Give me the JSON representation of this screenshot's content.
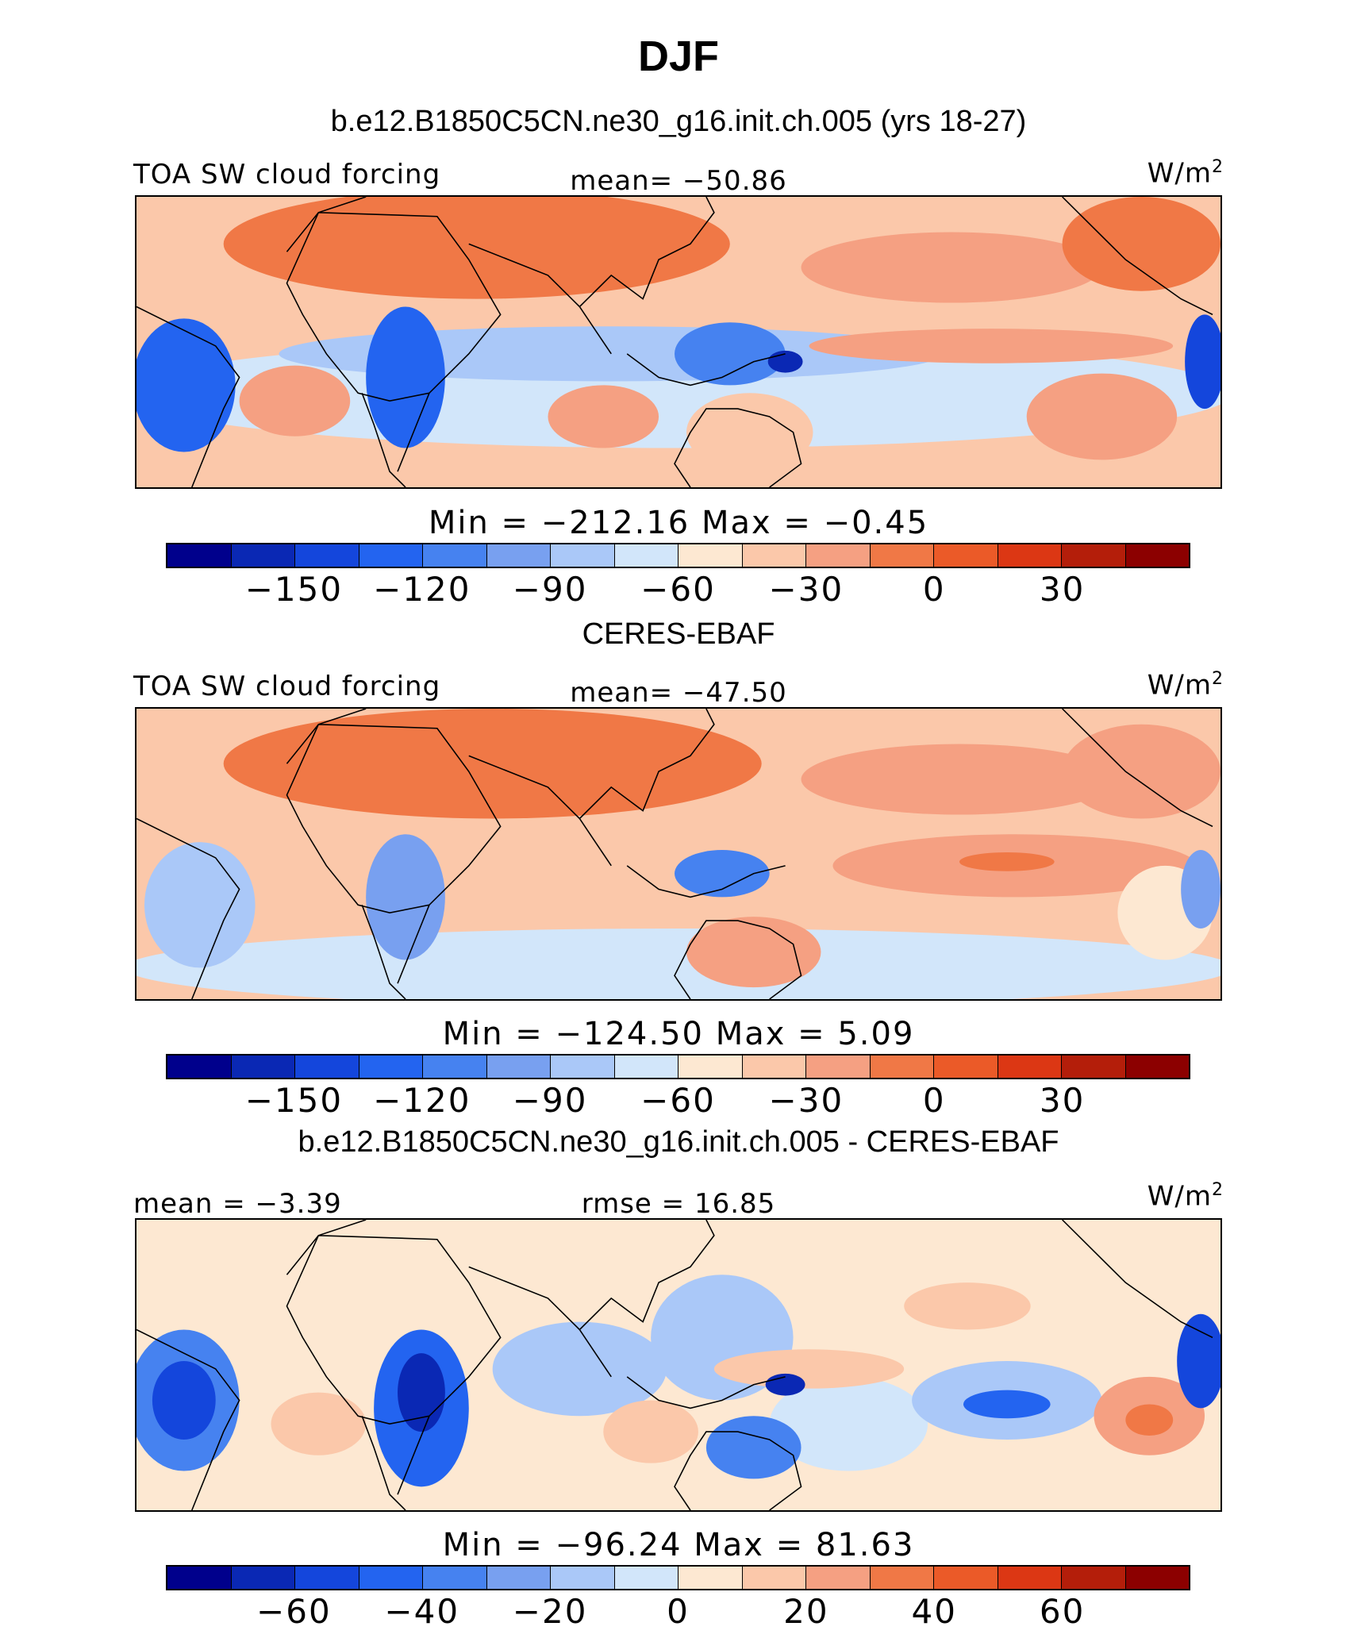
{
  "figure": {
    "title": "DJF",
    "model_name": "b.e12.B1850C5CN.ne30_g16.init.ch.005 (yrs 18-27)",
    "obs_name": "CERES-EBAF",
    "diff_name": "b.e12.B1850C5CN.ne30_g16.init.ch.005 - CERES-EBAF"
  },
  "panels": [
    {
      "variable": "TOA SW cloud forcing",
      "stat": "mean=  −50.86",
      "units": "W/m",
      "units_sup": "2",
      "minmax": "Min  =  −212.16  Max  =   −0.45"
    },
    {
      "variable": "TOA SW cloud forcing",
      "stat": "mean=  −47.50",
      "units": "W/m",
      "units_sup": "2",
      "minmax": "Min  =  −124.50  Max  =    5.09"
    },
    {
      "variable": "mean  =   −3.39",
      "stat": "rmse  =   16.85",
      "units": "W/m",
      "units_sup": "2",
      "minmax": "Min  =  −96.24  Max  =   81.63"
    }
  ],
  "colorbars": [
    {
      "ticks": [
        "−150",
        "−120",
        "−90",
        "−60",
        "−30",
        "0",
        "30"
      ]
    },
    {
      "ticks": [
        "−150",
        "−120",
        "−90",
        "−60",
        "−30",
        "0",
        "30"
      ]
    },
    {
      "ticks": [
        "−60",
        "−40",
        "−20",
        "0",
        "20",
        "40",
        "60"
      ]
    }
  ],
  "colors": [
    "#00008c",
    "#0a28b4",
    "#1446dc",
    "#2364f0",
    "#4682f0",
    "#78a0f0",
    "#aac8f8",
    "#d2e6fa",
    "#fde8d2",
    "#fbc8aa",
    "#f5a082",
    "#f07846",
    "#eb5a28",
    "#dc3714",
    "#b41e0a",
    "#8c0000"
  ]
}
